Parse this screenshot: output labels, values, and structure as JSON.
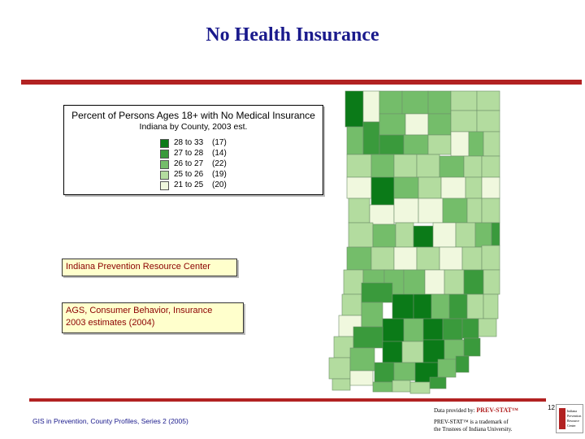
{
  "slide": {
    "title": "No Health Insurance",
    "page_number": "12"
  },
  "legend": {
    "title": "Percent of Persons Ages 18+ with No Medical Insurance",
    "subtitle": "Indiana by County, 2003 est.",
    "items": [
      {
        "range": "28 to 33",
        "count": "(17)",
        "color": "#0b7a18"
      },
      {
        "range": "27 to 28",
        "count": "(14)",
        "color": "#3a9a3c"
      },
      {
        "range": "26 to 27",
        "count": "(22)",
        "color": "#74bd6a"
      },
      {
        "range": "25 to 26",
        "count": "(19)",
        "color": "#b3dc9f"
      },
      {
        "range": "21 to 25",
        "count": "(20)",
        "color": "#f0f8de"
      }
    ]
  },
  "boxes": {
    "center": "Indiana Prevention Resource Center",
    "source_line1": "AGS, Consumer Behavior, Insurance",
    "source_line2": "2003 estimates (2004)"
  },
  "footer": {
    "text": "GIS in Prevention, County Profiles, Series 2 (2005)",
    "credit_prefix": "Data provided by:",
    "credit_brand": "PREV-STAT™",
    "credit_line2": "PREV-STAT™ is a trademark of",
    "credit_line3": "the Trustees of Indiana University.",
    "logo_text": "Indiana Prevention Resource Center"
  },
  "colors": {
    "title": "#1a1a8c",
    "rule": "#b22222",
    "box_fill": "#ffffcc",
    "box_text": "#8b0000"
  }
}
